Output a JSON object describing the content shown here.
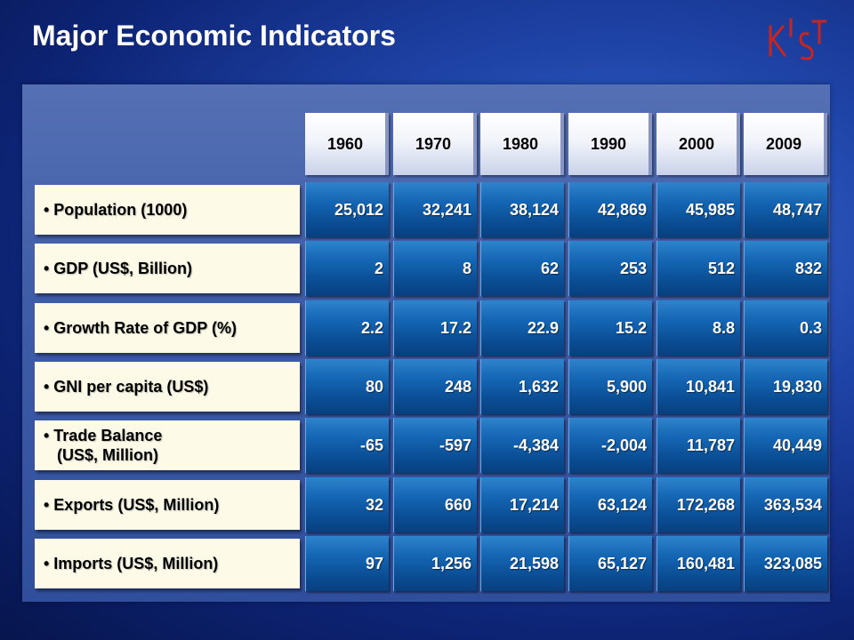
{
  "title": "Major Economic Indicators",
  "logo": {
    "icon": "kist-logo-icon",
    "text": "KIST",
    "color": "#c8251e"
  },
  "years": [
    "1960",
    "1970",
    "1980",
    "1990",
    "2000",
    "2009"
  ],
  "rows": [
    {
      "label": "• Population (1000)",
      "values": [
        "25,012",
        "32,241",
        "38,124",
        "42,869",
        "45,985",
        "48,747"
      ]
    },
    {
      "label": "• GDP (US$, Billion)",
      "values": [
        "2",
        "8",
        "62",
        "253",
        "512",
        "832"
      ]
    },
    {
      "label": "• Growth Rate of GDP (%)",
      "values": [
        "2.2",
        "17.2",
        "22.9",
        "15.2",
        "8.8",
        "0.3"
      ]
    },
    {
      "label": "• GNI per capita (US$)",
      "values": [
        "80",
        "248",
        "1,632",
        "5,900",
        "10,841",
        "19,830"
      ]
    },
    {
      "label": "• Trade Balance\n   (US$, Million)",
      "values": [
        "-65",
        "-597",
        "-4,384",
        "-2,004",
        "11,787",
        "40,449"
      ]
    },
    {
      "label": "• Exports (US$, Million)",
      "values": [
        "32",
        "660",
        "17,214",
        "63,124",
        "172,268",
        "363,534"
      ]
    },
    {
      "label": "• Imports (US$, Million)",
      "values": [
        "97",
        "1,256",
        "21,598",
        "65,127",
        "160,481",
        "323,085"
      ]
    }
  ]
}
